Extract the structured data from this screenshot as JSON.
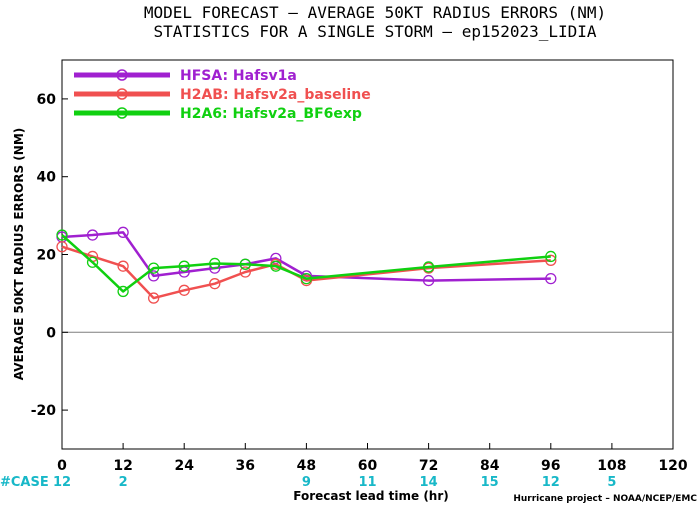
{
  "chart_data": {
    "type": "line",
    "title": "MODEL FORECAST – AVERAGE 50KT RADIUS ERRORS (NM)",
    "subtitle": "STATISTICS FOR A SINGLE STORM – ep152023_LIDIA",
    "xlabel": "Forecast lead time (hr)",
    "ylabel": "AVERAGE 50KT RADIUS ERRORS (NM)",
    "xlim": [
      0,
      120
    ],
    "ylim": [
      -30,
      70
    ],
    "xticks": [
      0,
      12,
      24,
      36,
      48,
      60,
      72,
      84,
      96,
      108,
      120
    ],
    "yticks": [
      -20,
      0,
      20,
      40,
      60
    ],
    "grid": false,
    "legend_position": "top-left",
    "series": [
      {
        "name": "HFSA: Hafsv1a",
        "color": "#a020d0",
        "x": [
          0,
          6,
          12,
          18,
          24,
          30,
          36,
          42,
          48,
          72,
          96
        ],
        "y": [
          24.5,
          25,
          25.7,
          14.5,
          15.5,
          16.5,
          17.5,
          19,
          14.5,
          13.3,
          13.8
        ]
      },
      {
        "name": "H2AB: Hafsv2a_baseline",
        "color": "#f05050",
        "x": [
          0,
          6,
          12,
          18,
          24,
          30,
          36,
          42,
          48,
          72,
          96
        ],
        "y": [
          22,
          19.5,
          17,
          8.8,
          10.8,
          12.5,
          15.5,
          17.5,
          13.3,
          16.5,
          18.5
        ]
      },
      {
        "name": "H2A6: Hafsv2a_BF6exp",
        "color": "#10d010",
        "x": [
          0,
          6,
          12,
          18,
          24,
          30,
          36,
          42,
          48,
          72,
          96
        ],
        "y": [
          25,
          18,
          10.5,
          16.5,
          17,
          17.7,
          17.5,
          17,
          13.8,
          16.8,
          19.5
        ]
      }
    ],
    "case_label": "#CASE",
    "case_counts": [
      {
        "x": 0,
        "label": "12"
      },
      {
        "x": 12,
        "label": "2"
      },
      {
        "x": 48,
        "label": "9"
      },
      {
        "x": 60,
        "label": "11"
      },
      {
        "x": 72,
        "label": "14"
      },
      {
        "x": 84,
        "label": "15"
      },
      {
        "x": 96,
        "label": "12"
      },
      {
        "x": 108,
        "label": "5"
      }
    ],
    "credit": "Hurricane project – NOAA/NCEP/EMC"
  }
}
